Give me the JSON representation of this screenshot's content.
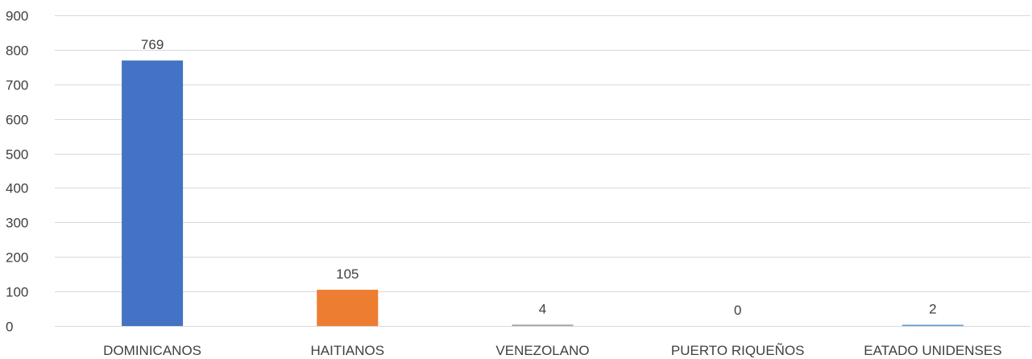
{
  "chart_data": {
    "type": "bar",
    "title": "",
    "xlabel": "",
    "ylabel": "",
    "categories": [
      "DOMINICANOS",
      "HAITIANOS",
      "VENEZOLANO",
      "PUERTO RIQUEÑOS",
      "EATADO UNIDENSES"
    ],
    "values": [
      769,
      105,
      4,
      0,
      2
    ],
    "colors": [
      "#4472c4",
      "#ed7d31",
      "#a5a5a5",
      "#ffc000",
      "#5b9bd5"
    ],
    "ylim": [
      0,
      900
    ],
    "yticks": [
      0,
      100,
      200,
      300,
      400,
      500,
      600,
      700,
      800,
      900
    ],
    "grid": true,
    "legend": "none",
    "data_labels": true
  }
}
